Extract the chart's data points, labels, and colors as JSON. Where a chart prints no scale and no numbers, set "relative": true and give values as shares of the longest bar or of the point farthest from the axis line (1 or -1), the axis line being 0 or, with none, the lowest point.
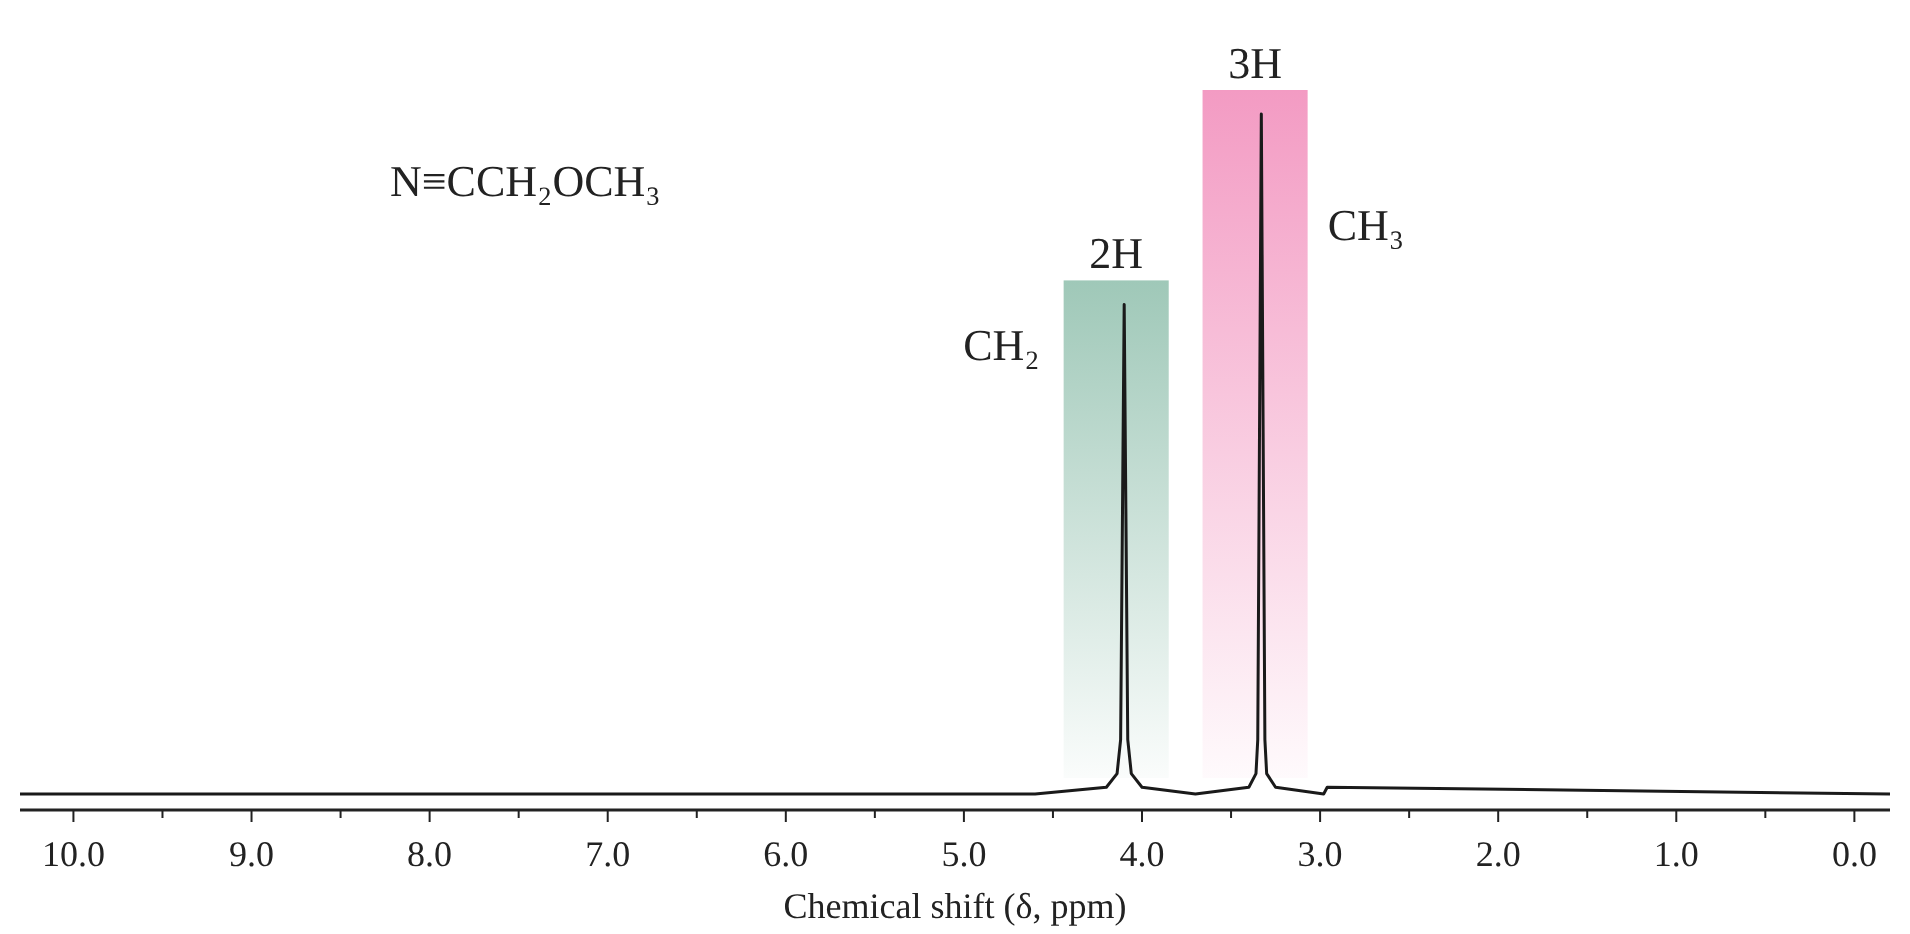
{
  "chart_data": {
    "type": "line",
    "relative": true,
    "xlabel": "Chemical shift (δ, ppm)",
    "xlim": [
      10.3,
      -0.2
    ],
    "xticks": [
      {
        "value": 10,
        "label": "10.0"
      },
      {
        "value": 9.5,
        "label": null
      },
      {
        "value": 9,
        "label": "9.0"
      },
      {
        "value": 8.5,
        "label": null
      },
      {
        "value": 8,
        "label": "8.0"
      },
      {
        "value": 7.5,
        "label": null
      },
      {
        "value": 7,
        "label": "7.0"
      },
      {
        "value": 6.5,
        "label": null
      },
      {
        "value": 6,
        "label": "6.0"
      },
      {
        "value": 5.5,
        "label": null
      },
      {
        "value": 5,
        "label": "5.0"
      },
      {
        "value": 4.5,
        "label": null
      },
      {
        "value": 4,
        "label": "4.0"
      },
      {
        "value": 3.5,
        "label": null
      },
      {
        "value": 3,
        "label": "3.0"
      },
      {
        "value": 2.5,
        "label": null
      },
      {
        "value": 2,
        "label": "2.0"
      },
      {
        "value": 1.5,
        "label": null
      },
      {
        "value": 1,
        "label": "1.0"
      },
      {
        "value": 0.5,
        "label": null
      },
      {
        "value": 0,
        "label": "0.0"
      }
    ],
    "series": [
      {
        "color": "#1a1a1a",
        "x": [
          10.3,
          4.6,
          4.2,
          4.14,
          4.12,
          4.1,
          4.08,
          4.06,
          4.0,
          3.7,
          3.4,
          3.36,
          3.35,
          3.33,
          3.31,
          3.3,
          3.25,
          2.98,
          2.96,
          -0.2
        ],
        "values": [
          0,
          0,
          0.01,
          0.03,
          0.08,
          0.72,
          0.08,
          0.03,
          0.01,
          0,
          0.01,
          0.03,
          0.08,
          1,
          0.08,
          0.03,
          0.01,
          0,
          0.01,
          0
        ]
      }
    ],
    "bands": [
      {
        "axis": "x",
        "from": 4.44,
        "to": 3.85,
        "label": "2H",
        "color": "#9fc8b8"
      },
      {
        "axis": "x",
        "from": 3.66,
        "to": 3.07,
        "label": "3H",
        "color": "#f39bc3"
      }
    ],
    "annotations": [
      "CH₂",
      "CH₃",
      "N≡CCH₂OCH₃"
    ],
    "grid": false,
    "marker": "none",
    "line_style": "solid"
  }
}
